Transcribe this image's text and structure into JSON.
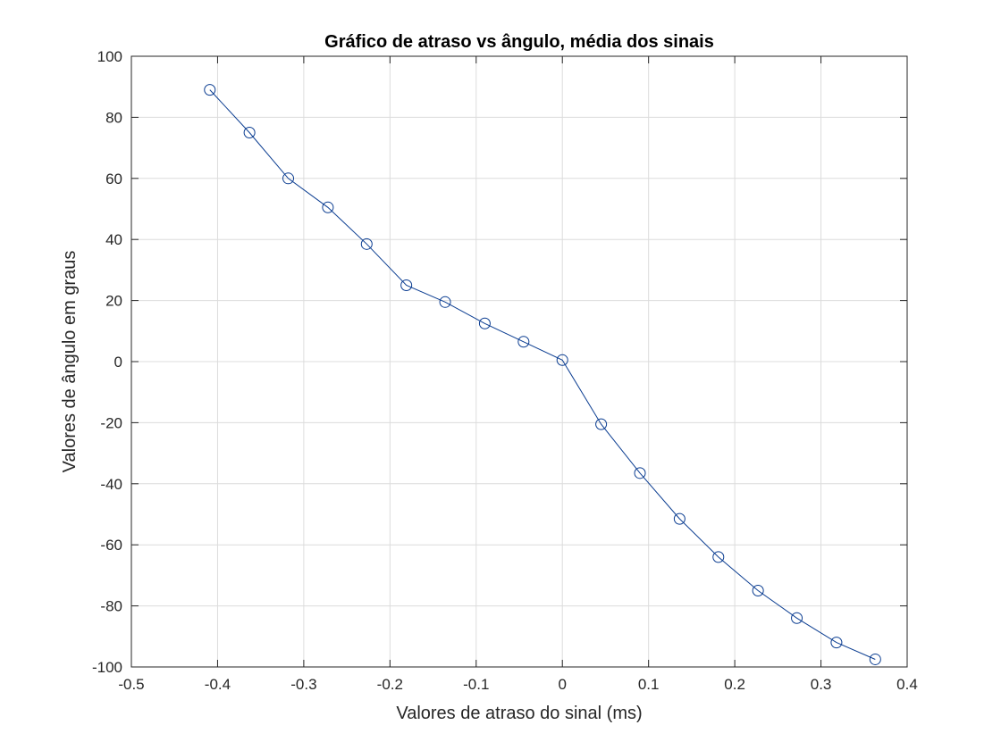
{
  "chart_data": {
    "type": "line",
    "title": "Gráfico de atraso vs ângulo, média dos sinais",
    "xlabel": "Valores de atraso do sinal (ms)",
    "ylabel": "Valores de ângulo em graus",
    "xlim": [
      -0.5,
      0.4
    ],
    "ylim": [
      -100,
      100
    ],
    "xticks": [
      -0.5,
      -0.4,
      -0.3,
      -0.2,
      -0.1,
      0,
      0.1,
      0.2,
      0.3,
      0.4
    ],
    "xtick_labels": [
      "-0.5",
      "-0.4",
      "-0.3",
      "-0.2",
      "-0.1",
      "0",
      "0.1",
      "0.2",
      "0.3",
      "0.4"
    ],
    "yticks": [
      -100,
      -80,
      -60,
      -40,
      -20,
      0,
      20,
      40,
      60,
      80,
      100
    ],
    "ytick_labels": [
      "-100",
      "-80",
      "-60",
      "-40",
      "-20",
      "0",
      "20",
      "40",
      "60",
      "80",
      "100"
    ],
    "grid": true,
    "marker": "circle",
    "line_color": "#0b3d91",
    "series": [
      {
        "x": [
          -0.409,
          -0.363,
          -0.318,
          -0.272,
          -0.227,
          -0.181,
          -0.136,
          -0.09,
          -0.045,
          0.0,
          0.045,
          0.09,
          0.136,
          0.181,
          0.227,
          0.272,
          0.318,
          0.363
        ],
        "y": [
          89,
          75,
          60,
          50.5,
          38.5,
          25,
          19.5,
          12.5,
          6.5,
          0.5,
          -20.5,
          -36.5,
          -51.5,
          -64,
          -75,
          -84,
          -92,
          -97.5
        ]
      }
    ]
  }
}
